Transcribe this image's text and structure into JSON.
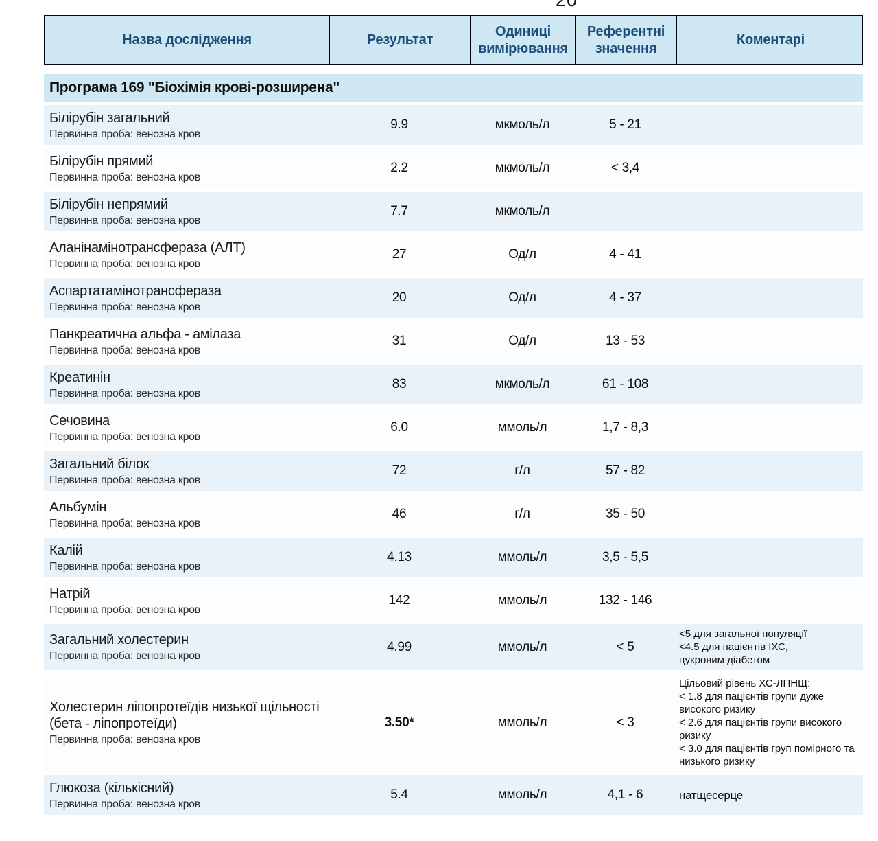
{
  "page": {
    "number": "20"
  },
  "colors": {
    "header_bg": "#cfe7f2",
    "header_text": "#1b4f79",
    "row_tint": "#e8f2f8",
    "border": "#05070d"
  },
  "table": {
    "headers": [
      "Назва дослідження",
      "Результат",
      "Одиниці вимірювання",
      "Референтні значення",
      "Коментарі"
    ],
    "section_title": "Програма 169 \"Біохімія крові-розширена\"",
    "sample_label": "Первинна проба: венозна кров",
    "rows": [
      {
        "name": "Білірубін загальний",
        "result": "9.9",
        "units": "мкмоль/л",
        "reference": "5 - 21",
        "comment": ""
      },
      {
        "name": "Білірубін прямий",
        "result": "2.2",
        "units": "мкмоль/л",
        "reference": "< 3,4",
        "comment": ""
      },
      {
        "name": "Білірубін непрямий",
        "result": "7.7",
        "units": "мкмоль/л",
        "reference": "",
        "comment": ""
      },
      {
        "name": "Аланінамінотрансфераза (АЛТ)",
        "result": "27",
        "units": "Од/л",
        "reference": "4 - 41",
        "comment": ""
      },
      {
        "name": "Аспартатамінотрансфераза",
        "result": "20",
        "units": "Од/л",
        "reference": "4 - 37",
        "comment": ""
      },
      {
        "name": "Панкреатична альфа - амілаза",
        "result": "31",
        "units": "Од/л",
        "reference": "13 - 53",
        "comment": ""
      },
      {
        "name": "Креатинін",
        "result": "83",
        "units": "мкмоль/л",
        "reference": "61 - 108",
        "comment": ""
      },
      {
        "name": "Сечовина",
        "result": "6.0",
        "units": "ммоль/л",
        "reference": "1,7 - 8,3",
        "comment": ""
      },
      {
        "name": "Загальний білок",
        "result": "72",
        "units": "г/л",
        "reference": "57 - 82",
        "comment": ""
      },
      {
        "name": "Альбумін",
        "result": "46",
        "units": "г/л",
        "reference": "35 - 50",
        "comment": ""
      },
      {
        "name": "Калій",
        "result": "4.13",
        "units": "ммоль/л",
        "reference": "3,5 - 5,5",
        "comment": ""
      },
      {
        "name": "Натрій",
        "result": "142",
        "units": "ммоль/л",
        "reference": "132 - 146",
        "comment": ""
      },
      {
        "name": "Загальний холестерин",
        "result": "4.99",
        "units": "ммоль/л",
        "reference": "< 5",
        "comment": "<5 для загальної популяції\n<4.5 для пацієнтів ІХС,\nцукровим діабетом"
      },
      {
        "name": "Холестерин ліпопротеїдів низької щільності (бета - ліпопротеїди)",
        "result": "3.50*",
        "result_bold": true,
        "units": "ммоль/л",
        "reference": "< 3",
        "comment": "Цільовий рівень ХС-ЛПНЩ:\n< 1.8 для пацієнтів групи дуже високого ризику\n< 2.6 для пацієнтів групи високого ризику\n< 3.0 для пацієнтів груп помірного та низького ризику"
      },
      {
        "name": "Глюкоза (кількісний)",
        "result": "5.4",
        "units": "ммоль/л",
        "reference": "4,1 - 6",
        "comment": "натщесерце",
        "comment_inline": true
      }
    ]
  }
}
